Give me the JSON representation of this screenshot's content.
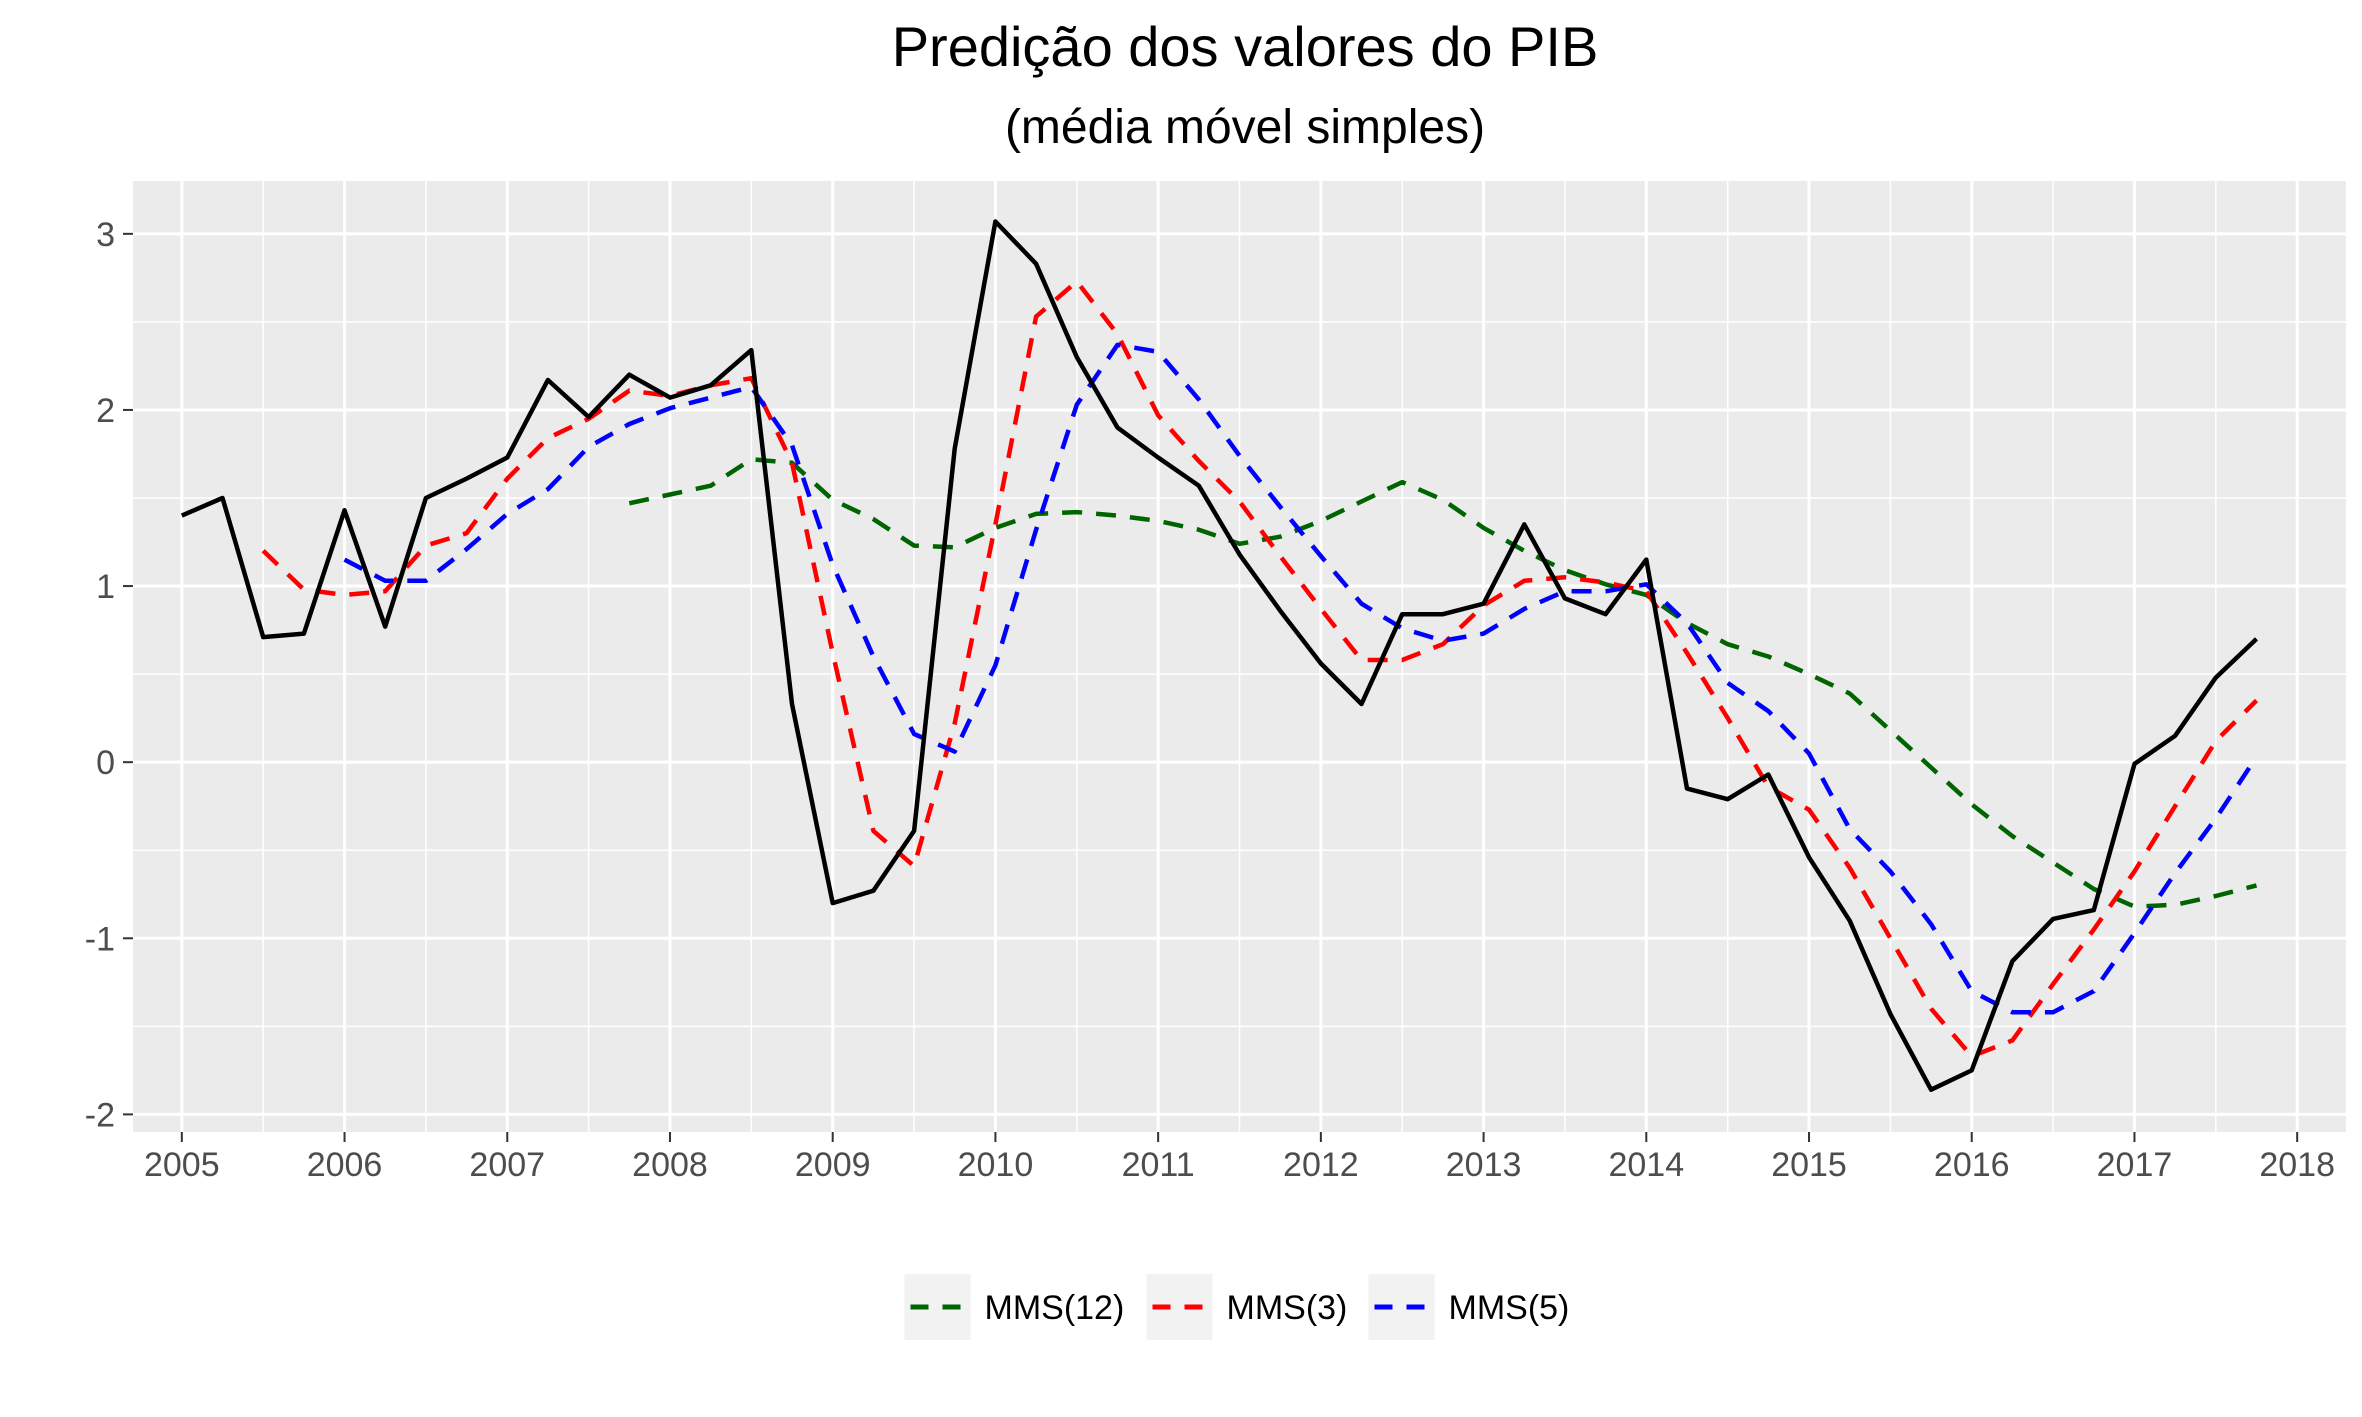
{
  "chart_data": {
    "type": "line",
    "title": "Predição dos valores do PIB",
    "subtitle": "(média móvel simples)",
    "xlabel": "",
    "ylabel": "",
    "xlim": [
      2004.7,
      2018.3
    ],
    "ylim": [
      -2.1,
      3.3
    ],
    "x_ticks": [
      2005,
      2006,
      2007,
      2008,
      2009,
      2010,
      2011,
      2012,
      2013,
      2014,
      2015,
      2016,
      2017,
      2018
    ],
    "x_tick_labels": [
      "2005",
      "2006",
      "2007",
      "2008",
      "2009",
      "2010",
      "2011",
      "2012",
      "2013",
      "2014",
      "2015",
      "2016",
      "2017",
      "2018"
    ],
    "y_ticks": [
      -2,
      -1,
      0,
      1,
      2,
      3
    ],
    "y_tick_labels": [
      "-2",
      "-1",
      "0",
      "1",
      "2",
      "3"
    ],
    "grid": true,
    "legend_position": "bottom",
    "series": [
      {
        "color": "#000000",
        "dash": "solid",
        "x": [
          2005.0,
          2005.25,
          2005.5,
          2005.75,
          2006.0,
          2006.25,
          2006.5,
          2006.75,
          2007.0,
          2007.25,
          2007.5,
          2007.75,
          2008.0,
          2008.25,
          2008.5,
          2008.75,
          2009.0,
          2009.25,
          2009.5,
          2009.75,
          2010.0,
          2010.25,
          2010.5,
          2010.75,
          2011.0,
          2011.25,
          2011.5,
          2011.75,
          2012.0,
          2012.25,
          2012.5,
          2012.75,
          2013.0,
          2013.25,
          2013.5,
          2013.75,
          2014.0,
          2014.25,
          2014.5,
          2014.75,
          2015.0,
          2015.25,
          2015.5,
          2015.75,
          2016.0,
          2016.25,
          2016.5,
          2016.75,
          2017.0,
          2017.25,
          2017.5,
          2017.75
        ],
        "values": [
          1.4,
          1.5,
          0.71,
          0.73,
          1.43,
          0.77,
          1.5,
          1.61,
          1.73,
          2.17,
          1.96,
          2.2,
          2.07,
          2.14,
          2.34,
          0.33,
          -0.8,
          -0.73,
          -0.39,
          1.78,
          3.07,
          2.83,
          2.3,
          1.9,
          1.73,
          1.57,
          1.18,
          0.86,
          0.56,
          0.33,
          0.84,
          0.84,
          0.9,
          1.35,
          0.93,
          0.84,
          1.15,
          -0.15,
          -0.21,
          -0.07,
          -0.54,
          -0.9,
          -1.43,
          -1.86,
          -1.75,
          -1.13,
          -0.89,
          -0.84,
          -0.01,
          0.15,
          0.48,
          0.7
        ]
      },
      {
        "name": "MMS(12)",
        "color": "#006400",
        "dash": "dashed",
        "x": [
          2007.75,
          2008.0,
          2008.25,
          2008.5,
          2008.75,
          2009.0,
          2009.25,
          2009.5,
          2009.75,
          2010.0,
          2010.25,
          2010.5,
          2010.75,
          2011.0,
          2011.25,
          2011.5,
          2011.75,
          2012.0,
          2012.25,
          2012.5,
          2012.75,
          2013.0,
          2013.25,
          2013.5,
          2013.75,
          2014.0,
          2014.25,
          2014.5,
          2014.75,
          2015.0,
          2015.25,
          2015.5,
          2015.75,
          2016.0,
          2016.25,
          2016.5,
          2016.75,
          2017.0,
          2017.25,
          2017.5,
          2017.75
        ],
        "values": [
          1.47,
          1.52,
          1.57,
          1.72,
          1.7,
          1.49,
          1.38,
          1.23,
          1.22,
          1.33,
          1.41,
          1.42,
          1.4,
          1.37,
          1.32,
          1.24,
          1.28,
          1.37,
          1.48,
          1.59,
          1.49,
          1.33,
          1.2,
          1.09,
          1.01,
          0.95,
          0.79,
          0.67,
          0.6,
          0.5,
          0.39,
          0.18,
          -0.03,
          -0.24,
          -0.42,
          -0.57,
          -0.72,
          -0.82,
          -0.81,
          -0.76,
          -0.7
        ]
      },
      {
        "name": "MMS(3)",
        "color": "#ff0000",
        "dash": "dashed",
        "x": [
          2005.5,
          2005.75,
          2006.0,
          2006.25,
          2006.5,
          2006.75,
          2007.0,
          2007.25,
          2007.5,
          2007.75,
          2008.0,
          2008.25,
          2008.5,
          2008.75,
          2009.0,
          2009.25,
          2009.5,
          2009.75,
          2010.0,
          2010.25,
          2010.5,
          2010.75,
          2011.0,
          2011.25,
          2011.5,
          2011.75,
          2012.0,
          2012.25,
          2012.5,
          2012.75,
          2013.0,
          2013.25,
          2013.5,
          2013.75,
          2014.0,
          2014.25,
          2014.5,
          2014.75,
          2015.0,
          2015.25,
          2015.5,
          2015.75,
          2016.0,
          2016.25,
          2016.5,
          2016.75,
          2017.0,
          2017.25,
          2017.5,
          2017.75
        ],
        "values": [
          1.2,
          0.98,
          0.95,
          0.97,
          1.23,
          1.3,
          1.61,
          1.84,
          1.95,
          2.11,
          2.08,
          2.14,
          2.18,
          1.7,
          0.62,
          -0.39,
          -0.59,
          0.22,
          1.35,
          2.53,
          2.73,
          2.43,
          1.97,
          1.71,
          1.48,
          1.17,
          0.87,
          0.58,
          0.58,
          0.67,
          0.89,
          1.03,
          1.05,
          1.02,
          0.97,
          0.62,
          0.25,
          -0.14,
          -0.27,
          -0.6,
          -1.0,
          -1.4,
          -1.67,
          -1.58,
          -1.26,
          -0.95,
          -0.62,
          -0.25,
          0.12,
          0.35
        ]
      },
      {
        "name": "MMS(5)",
        "color": "#0000ff",
        "dash": "dashed",
        "x": [
          2006.0,
          2006.25,
          2006.5,
          2006.75,
          2007.0,
          2007.25,
          2007.5,
          2007.75,
          2008.0,
          2008.25,
          2008.5,
          2008.75,
          2009.0,
          2009.25,
          2009.5,
          2009.75,
          2010.0,
          2010.25,
          2010.5,
          2010.75,
          2011.0,
          2011.25,
          2011.5,
          2011.75,
          2012.0,
          2012.25,
          2012.5,
          2012.75,
          2013.0,
          2013.25,
          2013.5,
          2013.75,
          2014.0,
          2014.25,
          2014.5,
          2014.75,
          2015.0,
          2015.25,
          2015.5,
          2015.75,
          2016.0,
          2016.25,
          2016.5,
          2016.75,
          2017.0,
          2017.25,
          2017.5,
          2017.75
        ],
        "values": [
          1.15,
          1.03,
          1.03,
          1.21,
          1.41,
          1.55,
          1.79,
          1.92,
          2.01,
          2.07,
          2.13,
          1.8,
          1.12,
          0.6,
          0.16,
          0.06,
          0.55,
          1.32,
          2.03,
          2.37,
          2.33,
          2.06,
          1.74,
          1.45,
          1.17,
          0.9,
          0.76,
          0.69,
          0.73,
          0.87,
          0.97,
          0.97,
          1.01,
          0.79,
          0.45,
          0.29,
          0.05,
          -0.38,
          -0.62,
          -0.92,
          -1.3,
          -1.42,
          -1.42,
          -1.3,
          -0.97,
          -0.63,
          -0.32,
          0.03
        ]
      }
    ]
  }
}
